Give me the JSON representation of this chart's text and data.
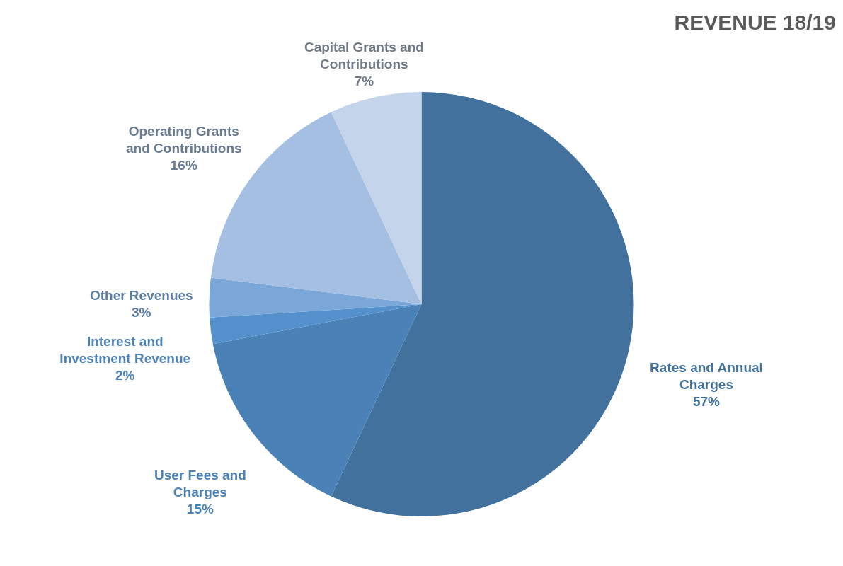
{
  "chart_data": {
    "type": "pie",
    "title": "REVENUE 18/19",
    "categories": [
      "Rates and Annual Charges",
      "User Fees and Charges",
      "Interest and Investment Revenue",
      "Other Revenues",
      "Operating Grants and Contributions",
      "Capital Grants and Contributions"
    ],
    "values": [
      57,
      15,
      2,
      3,
      16,
      7
    ],
    "value_labels": [
      "57%",
      "15%",
      "2%",
      "3%",
      "16%",
      "7%"
    ],
    "colors": [
      "#41719c",
      "#4a81b6",
      "#5491cc",
      "#7aa6d8",
      "#a4bfe2",
      "#c4d4ea"
    ],
    "legend": false
  }
}
